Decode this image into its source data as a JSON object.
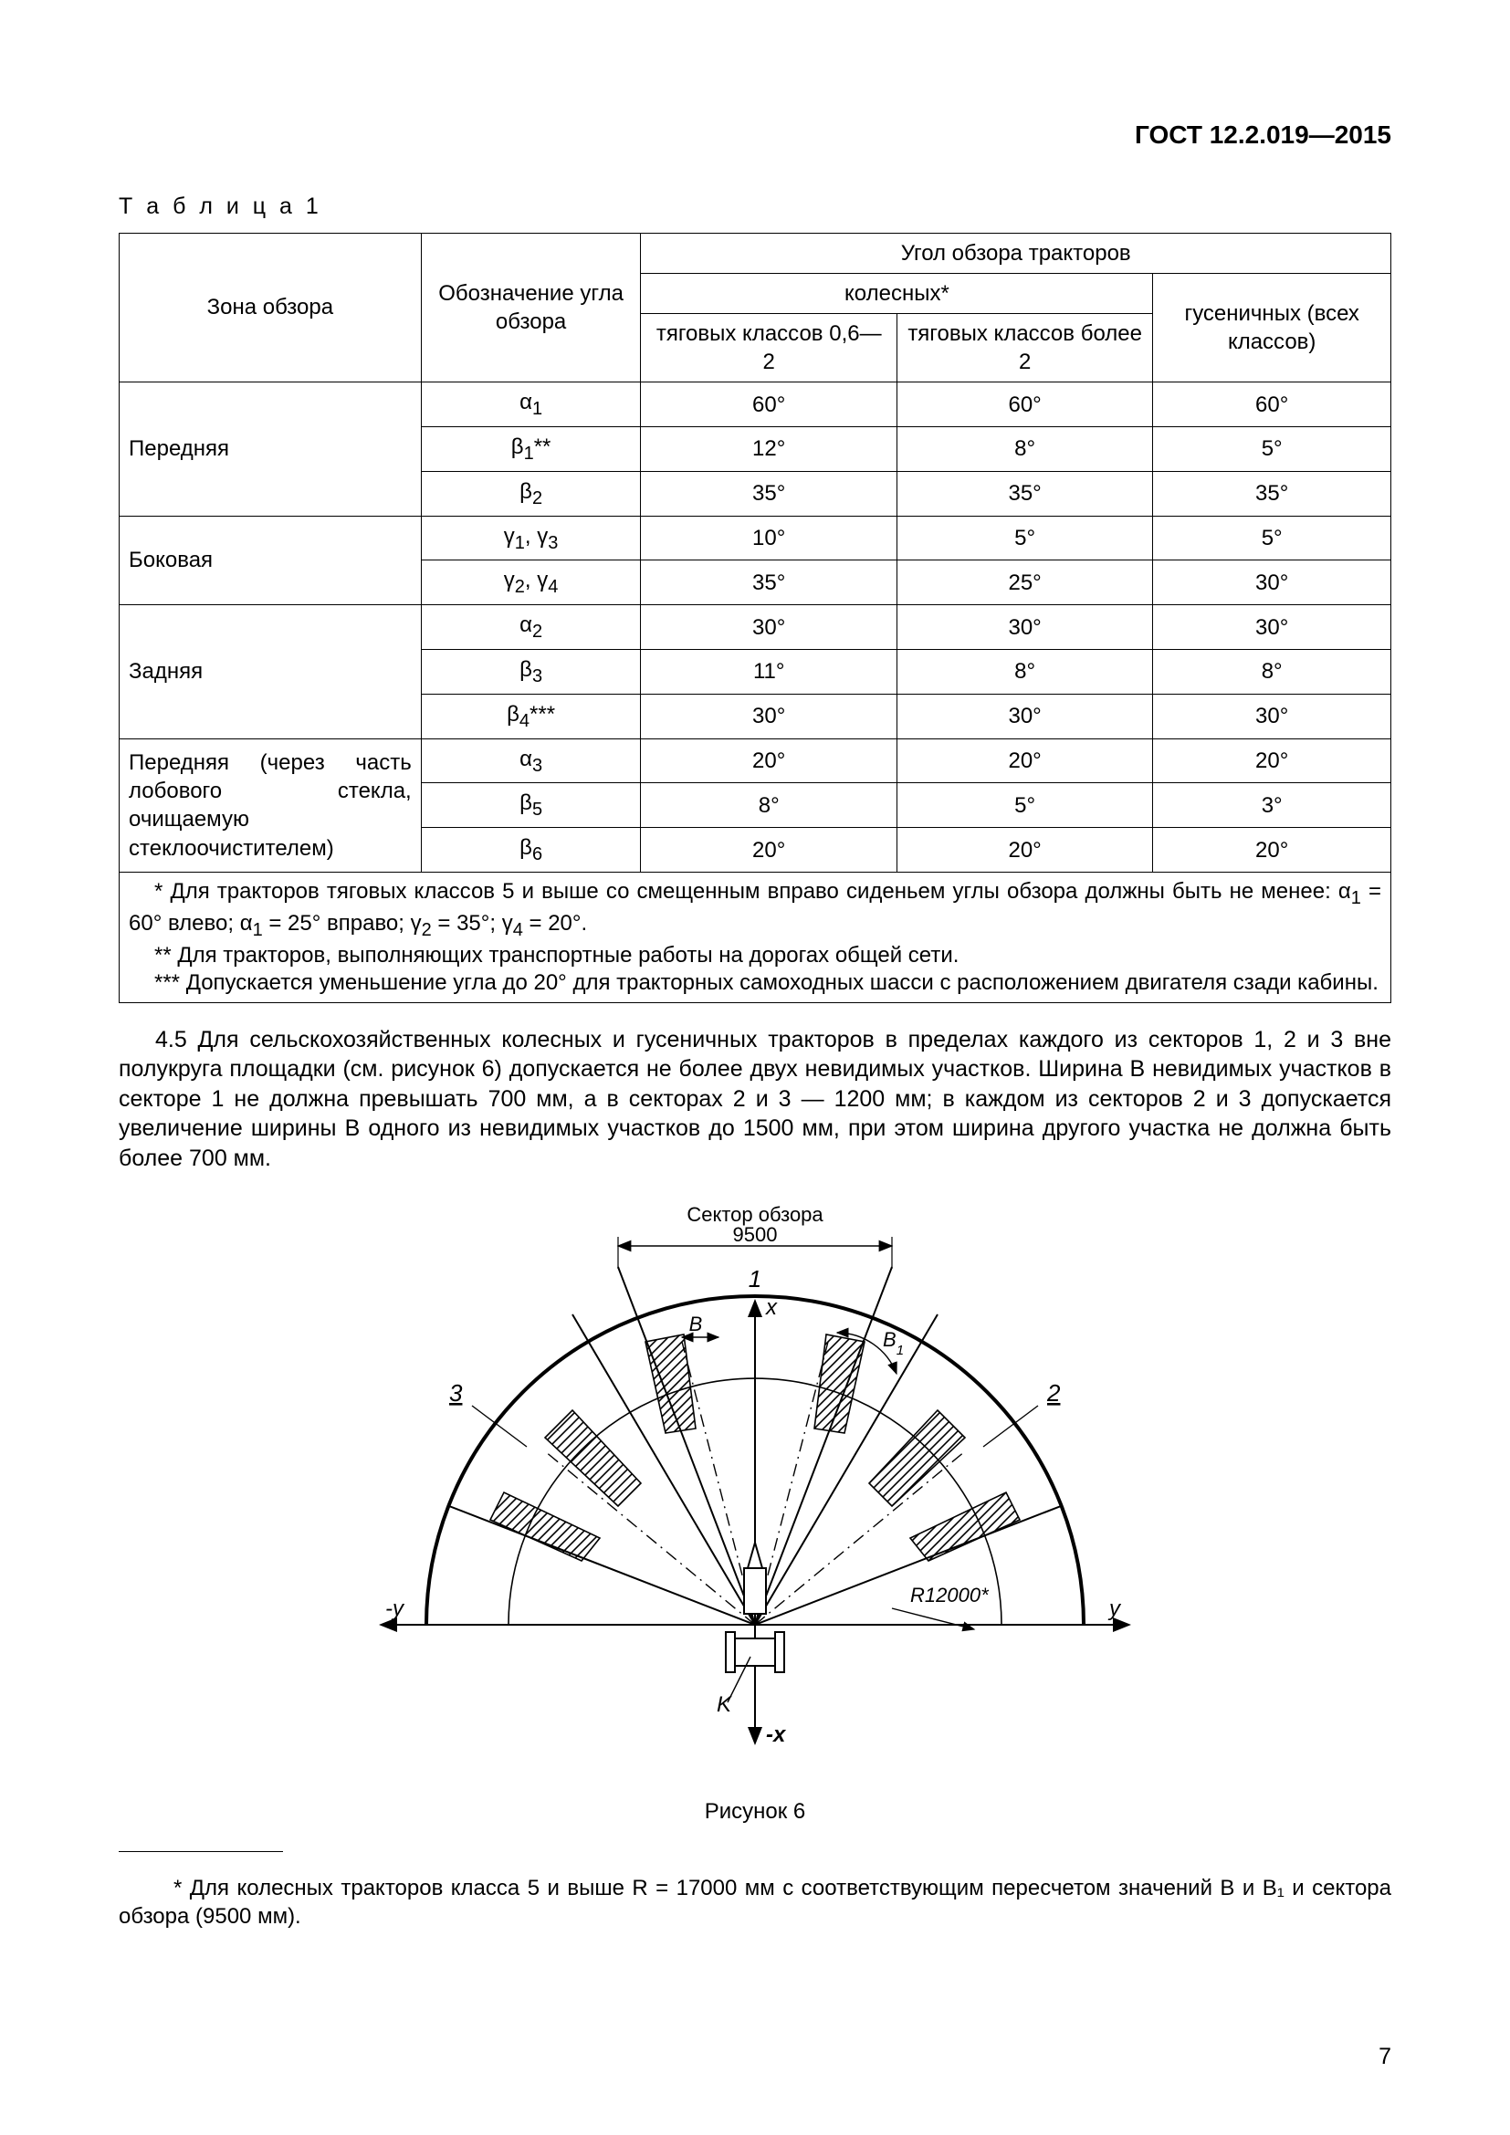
{
  "header": {
    "doc_code": "ГОСТ 12.2.019—2015"
  },
  "table": {
    "caption": "Т а б л и ц а  1",
    "columns": {
      "zone": "Зона обзора",
      "symbol": "Обозначение угла обзора",
      "group_header": "Угол обзора тракторов",
      "wheeled": "колесных*",
      "wheeled_class_low": "тяговых классов 0,6—2",
      "wheeled_class_high": "тяговых классов более 2",
      "tracked": "гусеничных (всех классов)"
    },
    "groups": [
      {
        "zone": "Передняя",
        "rows": [
          {
            "sym": "α",
            "sub": "1",
            "suf": "",
            "c1": "60°",
            "c2": "60°",
            "c3": "60°"
          },
          {
            "sym": "β",
            "sub": "1",
            "suf": "**",
            "c1": "12°",
            "c2": "8°",
            "c3": "5°"
          },
          {
            "sym": "β",
            "sub": "2",
            "suf": "",
            "c1": "35°",
            "c2": "35°",
            "c3": "35°"
          }
        ]
      },
      {
        "zone": "Боковая",
        "rows": [
          {
            "sym": "γ",
            "sub": "1",
            "sym2": "γ",
            "sub2": "3",
            "suf": "",
            "c1": "10°",
            "c2": "5°",
            "c3": "5°"
          },
          {
            "sym": "γ",
            "sub": "2",
            "sym2": "γ",
            "sub2": "4",
            "suf": "",
            "c1": "35°",
            "c2": "25°",
            "c3": "30°"
          }
        ]
      },
      {
        "zone": "Задняя",
        "rows": [
          {
            "sym": "α",
            "sub": "2",
            "suf": "",
            "c1": "30°",
            "c2": "30°",
            "c3": "30°"
          },
          {
            "sym": "β",
            "sub": "3",
            "suf": "",
            "c1": "11°",
            "c2": "8°",
            "c3": "8°"
          },
          {
            "sym": "β",
            "sub": "4",
            "suf": "***",
            "c1": "30°",
            "c2": "30°",
            "c3": "30°"
          }
        ]
      },
      {
        "zone": "Передняя (через часть лобового стекла, очищаемую стеклоочистителем)",
        "rows": [
          {
            "sym": "α",
            "sub": "3",
            "suf": "",
            "c1": "20°",
            "c2": "20°",
            "c3": "20°"
          },
          {
            "sym": "β",
            "sub": "5",
            "suf": "",
            "c1": "8°",
            "c2": "5°",
            "c3": "3°"
          },
          {
            "sym": "β",
            "sub": "6",
            "suf": "",
            "c1": "20°",
            "c2": "20°",
            "c3": "20°"
          }
        ]
      }
    ],
    "notes": {
      "n1_pre": "* Для тракторов тяговых классов 5 и выше со смещенным вправо сиденьем углы обзора должны быть не менее: ",
      "n1_a1l": "α₁ = 60° влево; ",
      "n1_a1r": "α₁ = 25° вправо; ",
      "n1_g2": "γ₂ = 35°; ",
      "n1_g4": "γ₄ = 20°.",
      "n2": "** Для тракторов, выполняющих транспортные работы на дорогах общей сети.",
      "n3": "*** Допускается уменьшение угла до 20° для тракторных самоходных шасси с расположением двигателя сзади кабины."
    }
  },
  "para_45": "4.5 Для сельскохозяйственных колесных и гусеничных тракторов в пределах каждого из секторов 1, 2 и 3 вне полукруга площадки (см. рисунок 6) допускается не более двух невидимых участков. Ширина B невидимых участков в секторе 1 не должна превышать 700 мм, а в секторах 2 и 3 — 1200 мм; в каждом из секторов 2 и 3 допускается увеличение ширины B одного из невидимых участков до 1500 мм, при этом ширина другого участка не должна быть более 700 мм.",
  "figure": {
    "title_top": "Сектор обзора",
    "dim_top": "9500",
    "labels": {
      "sector1": "1",
      "sector2": "2",
      "sector3": "3",
      "B": "B",
      "B1_sym": "B",
      "B1_sub": "1",
      "radius": "R12000*",
      "axis_x_pos": "x",
      "axis_x_neg": "-x",
      "axis_y_pos": "y",
      "axis_y_neg": "-y",
      "K": "K"
    },
    "caption": "Рисунок 6",
    "colors": {
      "stroke": "#000000",
      "bg": "#ffffff"
    },
    "stroke_width": 2
  },
  "footnote": "* Для колесных тракторов класса 5 и выше R = 17000 мм с соответствующим пересчетом значений B и B₁ и сектора обзора (9500 мм).",
  "page_number": "7"
}
